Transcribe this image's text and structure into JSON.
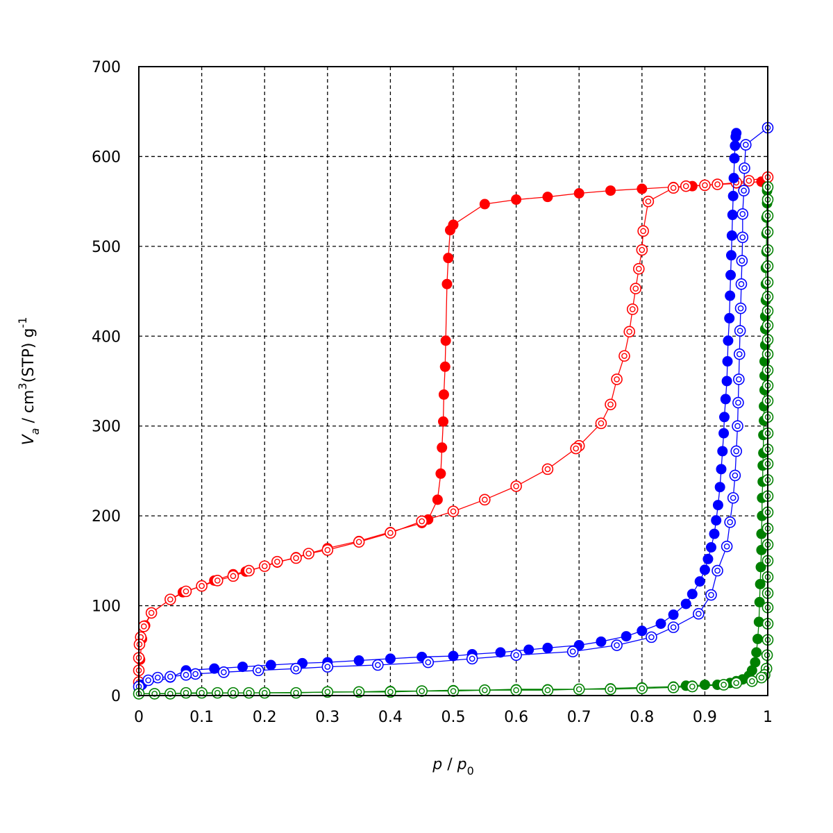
{
  "chart_data": {
    "type": "scatter",
    "xlabel": {
      "var": "p",
      "sep": " / ",
      "var2": "p",
      "sub": "0"
    },
    "ylabel": {
      "var": "V",
      "sub": "a",
      "mid": " / cm",
      "sup": "3",
      "post": "(STP) g",
      "sup2": "-1"
    },
    "xlim": [
      0,
      1
    ],
    "ylim": [
      0,
      700
    ],
    "xticks": [
      "0",
      "0.1",
      "0.2",
      "0.3",
      "0.4",
      "0.5",
      "0.6",
      "0.7",
      "0.8",
      "0.9",
      "1"
    ],
    "yticks": [
      "0",
      "100",
      "200",
      "300",
      "400",
      "500",
      "600",
      "700"
    ],
    "grid": true,
    "legend": "none",
    "series": [
      {
        "color": "#ff0000",
        "marker": "filled",
        "kind": "adsorption",
        "points": [
          [
            0.0,
            10
          ],
          [
            0.002,
            40
          ],
          [
            0.005,
            63
          ],
          [
            0.01,
            78
          ],
          [
            0.02,
            92
          ],
          [
            0.05,
            107
          ],
          [
            0.07,
            115
          ],
          [
            0.1,
            122
          ],
          [
            0.12,
            128
          ],
          [
            0.15,
            135
          ],
          [
            0.17,
            138
          ],
          [
            0.2,
            144
          ],
          [
            0.22,
            148
          ],
          [
            0.25,
            154
          ],
          [
            0.27,
            158
          ],
          [
            0.3,
            164
          ],
          [
            0.35,
            172
          ],
          [
            0.4,
            182
          ],
          [
            0.45,
            192
          ],
          [
            0.46,
            196
          ],
          [
            0.475,
            218
          ],
          [
            0.48,
            247
          ],
          [
            0.482,
            276
          ],
          [
            0.484,
            305
          ],
          [
            0.485,
            335
          ],
          [
            0.487,
            366
          ],
          [
            0.488,
            395
          ],
          [
            0.49,
            458
          ],
          [
            0.492,
            487
          ],
          [
            0.495,
            518
          ],
          [
            0.5,
            524
          ],
          [
            0.55,
            547
          ],
          [
            0.6,
            552
          ],
          [
            0.65,
            555
          ],
          [
            0.7,
            559
          ],
          [
            0.75,
            562
          ],
          [
            0.8,
            564
          ],
          [
            0.85,
            566
          ],
          [
            0.88,
            567
          ],
          [
            0.9,
            568
          ],
          [
            0.95,
            570
          ],
          [
            0.99,
            572
          ]
        ]
      },
      {
        "color": "#ff0000",
        "marker": "open",
        "kind": "desorption",
        "points": [
          [
            1.0,
            577
          ],
          [
            0.97,
            573
          ],
          [
            0.95,
            571
          ],
          [
            0.92,
            569
          ],
          [
            0.9,
            568
          ],
          [
            0.87,
            567
          ],
          [
            0.85,
            565
          ],
          [
            0.81,
            550
          ],
          [
            0.802,
            517
          ],
          [
            0.8,
            496
          ],
          [
            0.795,
            475
          ],
          [
            0.79,
            453
          ],
          [
            0.785,
            430
          ],
          [
            0.78,
            405
          ],
          [
            0.772,
            378
          ],
          [
            0.76,
            352
          ],
          [
            0.75,
            324
          ],
          [
            0.735,
            303
          ],
          [
            0.7,
            278
          ],
          [
            0.695,
            275
          ],
          [
            0.65,
            252
          ],
          [
            0.6,
            233
          ],
          [
            0.55,
            218
          ],
          [
            0.5,
            205
          ],
          [
            0.45,
            194
          ],
          [
            0.4,
            181
          ],
          [
            0.35,
            171
          ],
          [
            0.3,
            162
          ],
          [
            0.27,
            158
          ],
          [
            0.25,
            153
          ],
          [
            0.22,
            149
          ],
          [
            0.2,
            144
          ],
          [
            0.175,
            139
          ],
          [
            0.15,
            133
          ],
          [
            0.125,
            128
          ],
          [
            0.1,
            122
          ],
          [
            0.075,
            116
          ],
          [
            0.05,
            107
          ],
          [
            0.02,
            92
          ],
          [
            0.008,
            77
          ],
          [
            0.003,
            65
          ],
          [
            0.001,
            57
          ],
          [
            0.0,
            42
          ],
          [
            0.0,
            28
          ],
          [
            0.0,
            15
          ]
        ]
      },
      {
        "color": "#0000ff",
        "marker": "filled",
        "kind": "adsorption",
        "points": [
          [
            0.0,
            8
          ],
          [
            0.005,
            12
          ],
          [
            0.05,
            20
          ],
          [
            0.075,
            28
          ],
          [
            0.12,
            30
          ],
          [
            0.165,
            32
          ],
          [
            0.21,
            34
          ],
          [
            0.26,
            36
          ],
          [
            0.3,
            37
          ],
          [
            0.35,
            39
          ],
          [
            0.4,
            41
          ],
          [
            0.45,
            43
          ],
          [
            0.5,
            44
          ],
          [
            0.53,
            46
          ],
          [
            0.575,
            48
          ],
          [
            0.62,
            51
          ],
          [
            0.65,
            53
          ],
          [
            0.7,
            56
          ],
          [
            0.735,
            60
          ],
          [
            0.775,
            66
          ],
          [
            0.8,
            72
          ],
          [
            0.83,
            80
          ],
          [
            0.85,
            90
          ],
          [
            0.87,
            102
          ],
          [
            0.88,
            113
          ],
          [
            0.892,
            127
          ],
          [
            0.9,
            140
          ],
          [
            0.905,
            152
          ],
          [
            0.91,
            165
          ],
          [
            0.915,
            180
          ],
          [
            0.918,
            195
          ],
          [
            0.921,
            212
          ],
          [
            0.924,
            232
          ],
          [
            0.926,
            252
          ],
          [
            0.928,
            272
          ],
          [
            0.93,
            292
          ],
          [
            0.931,
            310
          ],
          [
            0.933,
            330
          ],
          [
            0.935,
            350
          ],
          [
            0.936,
            372
          ],
          [
            0.937,
            395
          ],
          [
            0.939,
            420
          ],
          [
            0.94,
            445
          ],
          [
            0.941,
            468
          ],
          [
            0.942,
            490
          ],
          [
            0.943,
            512
          ],
          [
            0.944,
            535
          ],
          [
            0.945,
            556
          ],
          [
            0.946,
            576
          ],
          [
            0.947,
            598
          ],
          [
            0.948,
            612
          ],
          [
            0.949,
            622
          ],
          [
            0.95,
            626
          ]
        ]
      },
      {
        "color": "#0000ff",
        "marker": "open",
        "kind": "desorption",
        "points": [
          [
            1.0,
            632
          ],
          [
            0.965,
            613
          ],
          [
            0.963,
            587
          ],
          [
            0.962,
            562
          ],
          [
            0.96,
            536
          ],
          [
            0.96,
            510
          ],
          [
            0.959,
            484
          ],
          [
            0.958,
            458
          ],
          [
            0.957,
            431
          ],
          [
            0.956,
            406
          ],
          [
            0.955,
            380
          ],
          [
            0.954,
            352
          ],
          [
            0.953,
            326
          ],
          [
            0.952,
            300
          ],
          [
            0.95,
            272
          ],
          [
            0.948,
            245
          ],
          [
            0.945,
            220
          ],
          [
            0.94,
            193
          ],
          [
            0.935,
            166
          ],
          [
            0.92,
            139
          ],
          [
            0.91,
            112
          ],
          [
            0.89,
            91
          ],
          [
            0.85,
            76
          ],
          [
            0.815,
            65
          ],
          [
            0.76,
            56
          ],
          [
            0.69,
            49
          ],
          [
            0.6,
            45
          ],
          [
            0.53,
            41
          ],
          [
            0.46,
            37
          ],
          [
            0.38,
            34
          ],
          [
            0.3,
            32
          ],
          [
            0.25,
            30
          ],
          [
            0.19,
            28
          ],
          [
            0.135,
            26
          ],
          [
            0.09,
            24
          ],
          [
            0.075,
            23
          ],
          [
            0.05,
            21
          ],
          [
            0.03,
            20
          ],
          [
            0.015,
            17
          ],
          [
            0.0,
            10
          ]
        ]
      },
      {
        "color": "#008000",
        "marker": "filled",
        "kind": "adsorption",
        "points": [
          [
            0.0,
            2
          ],
          [
            0.35,
            4
          ],
          [
            0.4,
            5
          ],
          [
            0.45,
            5
          ],
          [
            0.5,
            6
          ],
          [
            0.55,
            6
          ],
          [
            0.6,
            7
          ],
          [
            0.65,
            7
          ],
          [
            0.7,
            7
          ],
          [
            0.75,
            8
          ],
          [
            0.8,
            9
          ],
          [
            0.85,
            10
          ],
          [
            0.87,
            11
          ],
          [
            0.88,
            11
          ],
          [
            0.9,
            12
          ],
          [
            0.92,
            12
          ],
          [
            0.94,
            14
          ],
          [
            0.95,
            16
          ],
          [
            0.96,
            18
          ],
          [
            0.97,
            22
          ],
          [
            0.975,
            28
          ],
          [
            0.98,
            37
          ],
          [
            0.982,
            48
          ],
          [
            0.984,
            63
          ],
          [
            0.986,
            82
          ],
          [
            0.987,
            104
          ],
          [
            0.988,
            124
          ],
          [
            0.989,
            143
          ],
          [
            0.99,
            162
          ],
          [
            0.99,
            180
          ],
          [
            0.991,
            200
          ],
          [
            0.991,
            220
          ],
          [
            0.992,
            238
          ],
          [
            0.992,
            256
          ],
          [
            0.993,
            270
          ],
          [
            0.993,
            290
          ],
          [
            0.994,
            306
          ],
          [
            0.994,
            322
          ],
          [
            0.995,
            340
          ],
          [
            0.995,
            356
          ],
          [
            0.995,
            372
          ],
          [
            0.996,
            390
          ],
          [
            0.996,
            408
          ],
          [
            0.996,
            422
          ],
          [
            0.997,
            440
          ],
          [
            0.997,
            458
          ],
          [
            0.997,
            476
          ],
          [
            0.998,
            494
          ],
          [
            0.998,
            514
          ],
          [
            0.998,
            532
          ],
          [
            0.999,
            548
          ],
          [
            0.999,
            562
          ]
        ]
      },
      {
        "color": "#008000",
        "marker": "open",
        "kind": "desorption",
        "points": [
          [
            1.0,
            566
          ],
          [
            1.0,
            552
          ],
          [
            1.0,
            534
          ],
          [
            1.0,
            516
          ],
          [
            1.0,
            496
          ],
          [
            1.0,
            478
          ],
          [
            1.0,
            460
          ],
          [
            1.0,
            444
          ],
          [
            1.0,
            428
          ],
          [
            1.0,
            412
          ],
          [
            1.0,
            396
          ],
          [
            1.0,
            380
          ],
          [
            1.0,
            362
          ],
          [
            1.0,
            345
          ],
          [
            1.0,
            328
          ],
          [
            1.0,
            310
          ],
          [
            1.0,
            292
          ],
          [
            1.0,
            274
          ],
          [
            1.0,
            258
          ],
          [
            1.0,
            240
          ],
          [
            1.0,
            222
          ],
          [
            1.0,
            204
          ],
          [
            1.0,
            186
          ],
          [
            1.0,
            168
          ],
          [
            1.0,
            150
          ],
          [
            1.0,
            132
          ],
          [
            1.0,
            114
          ],
          [
            1.0,
            98
          ],
          [
            1.0,
            80
          ],
          [
            1.0,
            62
          ],
          [
            0.999,
            45
          ],
          [
            0.998,
            30
          ],
          [
            0.995,
            23
          ],
          [
            0.99,
            20
          ],
          [
            0.975,
            16
          ],
          [
            0.95,
            14
          ],
          [
            0.93,
            12
          ],
          [
            0.88,
            10
          ],
          [
            0.85,
            9
          ],
          [
            0.8,
            8
          ],
          [
            0.75,
            7
          ],
          [
            0.7,
            7
          ],
          [
            0.65,
            6
          ],
          [
            0.6,
            6
          ],
          [
            0.55,
            6
          ],
          [
            0.5,
            5
          ],
          [
            0.45,
            5
          ],
          [
            0.4,
            4
          ],
          [
            0.35,
            4
          ],
          [
            0.3,
            4
          ],
          [
            0.25,
            3
          ],
          [
            0.2,
            3
          ],
          [
            0.175,
            3
          ],
          [
            0.15,
            3
          ],
          [
            0.125,
            3
          ],
          [
            0.1,
            3
          ],
          [
            0.075,
            3
          ],
          [
            0.05,
            2
          ],
          [
            0.025,
            2
          ],
          [
            0.0,
            2
          ]
        ]
      }
    ]
  }
}
